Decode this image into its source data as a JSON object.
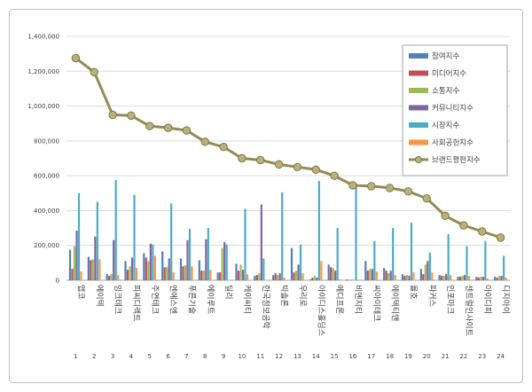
{
  "chart_data": {
    "type": "bar",
    "title": "",
    "xlabel": "",
    "ylabel": "",
    "ylim": [
      0,
      1400000
    ],
    "yticks": [
      "0",
      "200,000",
      "400,000",
      "600,000",
      "800,000",
      "1,000,000",
      "1,200,000",
      "1,400,000"
    ],
    "grid": true,
    "legend_position": "top-right",
    "categories": [
      "앱코",
      "에이텍",
      "잉크테크",
      "피씨디렉트",
      "주연테크",
      "엔에스엔",
      "푸른기술",
      "에이루트",
      "딜리",
      "케이씨티",
      "한국정보공학",
      "빅솔론",
      "우리로",
      "아이디스홀딩스",
      "메디프론",
      "비엔지티",
      "씨아이테크",
      "에이텍티앤",
      "율호",
      "파커스",
      "인포마크",
      "센트럴인사이트",
      "아이디피",
      "디지아이"
    ],
    "numbers": [
      "1",
      "2",
      "3",
      "4",
      "5",
      "6",
      "7",
      "8",
      "9",
      "10",
      "11",
      "12",
      "13",
      "14",
      "15",
      "16",
      "17",
      "18",
      "19",
      "20",
      "21",
      "22",
      "23",
      "24"
    ],
    "series": [
      {
        "name": "참여지수",
        "color": "#4f81bd",
        "values": [
          175000,
          135000,
          35000,
          110000,
          155000,
          165000,
          125000,
          115000,
          45000,
          95000,
          25000,
          30000,
          185000,
          5000,
          90000,
          5000,
          110000,
          70000,
          35000,
          65000,
          30000,
          20000,
          20000,
          20000
        ]
      },
      {
        "name": "미디어지수",
        "color": "#c0504d",
        "values": [
          65000,
          115000,
          25000,
          60000,
          130000,
          75000,
          80000,
          55000,
          45000,
          55000,
          30000,
          40000,
          45000,
          15000,
          75000,
          0,
          55000,
          55000,
          25000,
          35000,
          25000,
          20000,
          15000,
          15000
        ]
      },
      {
        "name": "소통지수",
        "color": "#9bbb59",
        "values": [
          195000,
          120000,
          35000,
          80000,
          110000,
          75000,
          85000,
          55000,
          185000,
          90000,
          40000,
          30000,
          55000,
          25000,
          70000,
          5000,
          65000,
          40000,
          30000,
          90000,
          25000,
          25000,
          20000,
          25000
        ]
      },
      {
        "name": "커뮤니티지수",
        "color": "#8064a2",
        "values": [
          285000,
          250000,
          230000,
          130000,
          210000,
          125000,
          230000,
          235000,
          220000,
          60000,
          435000,
          40000,
          90000,
          15000,
          55000,
          0,
          65000,
          55000,
          25000,
          110000,
          35000,
          30000,
          20000,
          25000
        ]
      },
      {
        "name": "시장지수",
        "color": "#4bacc6",
        "values": [
          500000,
          450000,
          575000,
          490000,
          205000,
          440000,
          295000,
          300000,
          205000,
          410000,
          125000,
          505000,
          205000,
          570000,
          300000,
          540000,
          225000,
          300000,
          330000,
          160000,
          265000,
          195000,
          225000,
          140000
        ]
      },
      {
        "name": "사회공헌지수",
        "color": "#f79646",
        "values": [
          50000,
          120000,
          30000,
          70000,
          140000,
          45000,
          80000,
          60000,
          0,
          35000,
          0,
          15000,
          40000,
          110000,
          5000,
          0,
          50000,
          30000,
          45000,
          45000,
          30000,
          25000,
          10000,
          15000
        ]
      }
    ],
    "line": {
      "name": "브랜드평판지수",
      "color": "#948a54",
      "values": [
        1275000,
        1195000,
        950000,
        945000,
        885000,
        875000,
        860000,
        795000,
        765000,
        700000,
        690000,
        665000,
        650000,
        635000,
        600000,
        545000,
        540000,
        530000,
        510000,
        470000,
        370000,
        315000,
        280000,
        245000
      ]
    }
  }
}
